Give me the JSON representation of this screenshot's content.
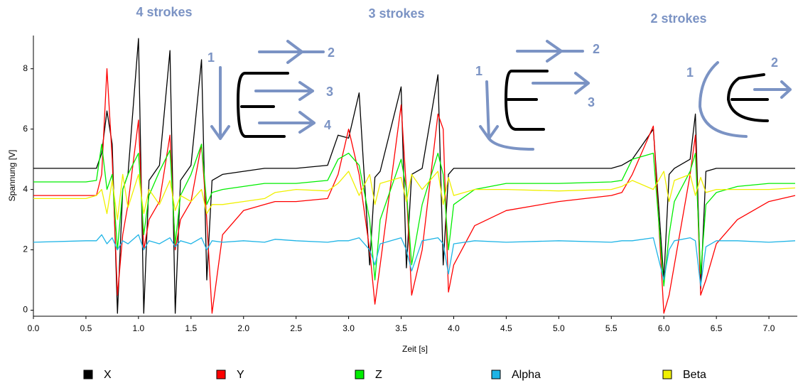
{
  "chart_data": {
    "type": "line",
    "annotations": [
      "4 strokes",
      "3 strokes",
      "2 strokes",
      "1",
      "2",
      "3",
      "4",
      "1",
      "2",
      "3",
      "1",
      "2"
    ],
    "xlabel": "Zeit [s]",
    "ylabel": "Spannung [V]",
    "xlim": [
      0,
      7.27
    ],
    "ylim": [
      -0.2,
      9.1
    ],
    "xticks": [
      {
        "value": 0,
        "label": "0.0"
      },
      {
        "value": 0.5,
        "label": "0.5"
      },
      {
        "value": 1,
        "label": "1.0"
      },
      {
        "value": 1.5,
        "label": "1.5"
      },
      {
        "value": 2,
        "label": "2.0"
      },
      {
        "value": 2.5,
        "label": "2.5"
      },
      {
        "value": 3,
        "label": "3.0"
      },
      {
        "value": 3.5,
        "label": "3.5"
      },
      {
        "value": 4,
        "label": "4.0"
      },
      {
        "value": 4.5,
        "label": "4.5"
      },
      {
        "value": 5,
        "label": "5.0"
      },
      {
        "value": 5.5,
        "label": "5.5"
      },
      {
        "value": 6,
        "label": "6.0"
      },
      {
        "value": 6.5,
        "label": "6.5"
      },
      {
        "value": 7,
        "label": "7.0"
      }
    ],
    "yticks": [
      0,
      2,
      4,
      6,
      8
    ],
    "x": [
      0,
      0.5,
      0.6,
      0.65,
      0.7,
      0.75,
      0.8,
      0.85,
      0.9,
      1.0,
      1.05,
      1.1,
      1.2,
      1.3,
      1.35,
      1.4,
      1.5,
      1.6,
      1.65,
      1.7,
      1.8,
      2.0,
      2.2,
      2.3,
      2.5,
      2.8,
      2.9,
      3.0,
      3.1,
      3.2,
      3.25,
      3.3,
      3.5,
      3.55,
      3.6,
      3.7,
      3.85,
      3.9,
      3.95,
      4.0,
      4.2,
      4.5,
      5.0,
      5.5,
      5.6,
      5.7,
      5.9,
      6.0,
      6.05,
      6.1,
      6.25,
      6.3,
      6.35,
      6.4,
      6.5,
      6.7,
      7.0,
      7.25
    ],
    "series": [
      {
        "name": "X",
        "color": "#000000",
        "values": [
          4.7,
          4.7,
          4.7,
          5.2,
          6.6,
          5.5,
          -0.1,
          4.0,
          4.5,
          9.0,
          -0.1,
          4.3,
          4.8,
          8.6,
          -0.1,
          4.3,
          4.8,
          8.3,
          1.0,
          4.3,
          4.5,
          4.6,
          4.7,
          4.7,
          4.7,
          4.8,
          5.8,
          5.7,
          7.2,
          1.5,
          4.4,
          4.6,
          7.4,
          1.4,
          4.5,
          4.7,
          7.8,
          1.5,
          4.5,
          4.7,
          4.7,
          4.7,
          4.7,
          4.7,
          4.8,
          5.0,
          6.0,
          1.0,
          4.5,
          4.7,
          5.0,
          6.5,
          0.7,
          4.6,
          4.7,
          4.7,
          4.7,
          4.7
        ]
      },
      {
        "name": "Y",
        "color": "#ff0000",
        "values": [
          3.8,
          3.8,
          3.8,
          4.5,
          8.0,
          5.0,
          0.5,
          2.5,
          3.5,
          6.3,
          2.0,
          3.0,
          3.6,
          5.8,
          2.0,
          3.0,
          3.6,
          5.5,
          3.0,
          -0.1,
          2.5,
          3.3,
          3.5,
          3.6,
          3.6,
          3.7,
          4.5,
          6.0,
          4.5,
          2.0,
          0.2,
          1.5,
          6.8,
          4.0,
          0.5,
          2.0,
          6.5,
          6.0,
          0.6,
          1.5,
          2.8,
          3.3,
          3.6,
          3.8,
          3.9,
          4.5,
          6.1,
          -0.1,
          0.5,
          1.5,
          4.5,
          5.8,
          0.5,
          1.0,
          2.2,
          3.0,
          3.6,
          3.8
        ]
      },
      {
        "name": "Z",
        "color": "#00ee00",
        "values": [
          4.25,
          4.25,
          4.3,
          5.5,
          4.0,
          4.5,
          2.0,
          4.0,
          4.5,
          5.2,
          2.5,
          3.8,
          4.6,
          5.3,
          2.2,
          3.8,
          4.5,
          5.5,
          3.5,
          3.9,
          4.0,
          4.1,
          4.2,
          4.2,
          4.2,
          4.3,
          5.0,
          5.2,
          4.8,
          3.0,
          1.0,
          3.0,
          5.0,
          4.0,
          1.5,
          3.5,
          5.2,
          4.5,
          2.0,
          3.5,
          4.0,
          4.2,
          4.2,
          4.25,
          4.3,
          5.0,
          5.2,
          0.8,
          2.5,
          3.6,
          4.6,
          5.2,
          1.2,
          3.5,
          3.9,
          4.1,
          4.2,
          4.2
        ]
      },
      {
        "name": "Alpha",
        "color": "#1eb4e6",
        "values": [
          2.25,
          2.3,
          2.3,
          2.5,
          2.2,
          2.4,
          2.0,
          2.3,
          2.2,
          2.5,
          2.0,
          2.3,
          2.2,
          2.4,
          2.1,
          2.3,
          2.2,
          2.4,
          2.0,
          2.3,
          2.25,
          2.3,
          2.25,
          2.35,
          2.3,
          2.25,
          2.3,
          2.3,
          2.4,
          2.0,
          1.5,
          2.2,
          2.4,
          2.0,
          1.3,
          2.3,
          2.4,
          2.2,
          1.2,
          2.2,
          2.3,
          2.25,
          2.3,
          2.25,
          2.3,
          2.3,
          2.4,
          1.0,
          2.0,
          2.3,
          2.4,
          2.3,
          0.8,
          2.1,
          2.3,
          2.3,
          2.25,
          2.3
        ]
      },
      {
        "name": "Beta",
        "color": "#f0f000",
        "values": [
          3.7,
          3.7,
          3.8,
          4.0,
          3.2,
          4.3,
          3.0,
          4.5,
          3.4,
          4.5,
          3.2,
          4.0,
          3.5,
          4.3,
          3.3,
          3.8,
          3.6,
          4.0,
          3.2,
          3.5,
          3.5,
          3.6,
          3.7,
          3.9,
          4.0,
          3.95,
          4.2,
          4.6,
          3.8,
          4.5,
          3.5,
          4.2,
          4.4,
          3.6,
          4.5,
          4.0,
          4.6,
          3.5,
          4.4,
          3.8,
          4.0,
          4.0,
          3.95,
          4.0,
          4.1,
          4.3,
          4.0,
          4.6,
          3.6,
          4.3,
          4.5,
          3.8,
          4.4,
          3.9,
          4.0,
          4.0,
          4.0,
          4.05
        ]
      }
    ]
  }
}
